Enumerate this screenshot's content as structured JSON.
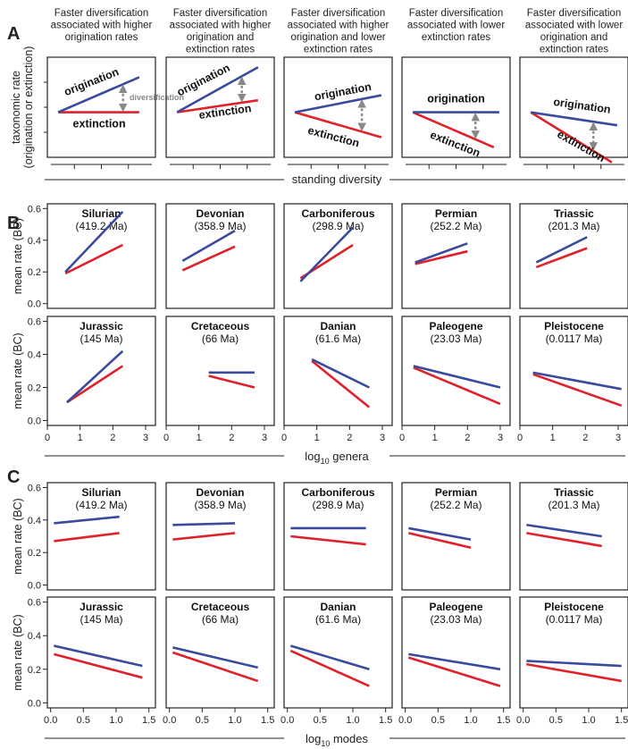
{
  "colors": {
    "origination": "#3a4a9c",
    "extinction": "#e0212b",
    "arrow": "#888888",
    "axis": "#222222"
  },
  "panel_letters": [
    "A",
    "B",
    "C"
  ],
  "chart_data": [
    {
      "id": "A",
      "type": "line",
      "ylabel": [
        "taxonomic rate",
        "(origination or extinction)"
      ],
      "xlabel": "standing diversity",
      "panels": [
        {
          "header": [
            "Faster diversification",
            "associated with higher",
            "origination rates"
          ],
          "origination": [
            [
              0.1,
              0.45
            ],
            [
              0.85,
              0.8
            ]
          ],
          "extinction": [
            [
              0.1,
              0.45
            ],
            [
              0.85,
              0.45
            ]
          ],
          "labels": {
            "origination": "origination",
            "extinction": "extinction",
            "diversification": "diversification"
          }
        },
        {
          "header": [
            "Faster diversification",
            "associated with higher",
            "origination and",
            "extinction rates"
          ],
          "origination": [
            [
              0.1,
              0.45
            ],
            [
              0.85,
              0.9
            ]
          ],
          "extinction": [
            [
              0.1,
              0.45
            ],
            [
              0.85,
              0.57
            ]
          ],
          "labels": {
            "origination": "origination",
            "extinction": "extinction"
          }
        },
        {
          "header": [
            "Faster diversification",
            "associated with higher",
            "origination and lower",
            "extinction rates"
          ],
          "origination": [
            [
              0.1,
              0.45
            ],
            [
              0.9,
              0.62
            ]
          ],
          "extinction": [
            [
              0.1,
              0.45
            ],
            [
              0.9,
              0.2
            ]
          ],
          "labels": {
            "origination": "origination",
            "extinction": "extinction"
          }
        },
        {
          "header": [
            "Faster diversification",
            "associated with lower",
            "extinction rates"
          ],
          "origination": [
            [
              0.1,
              0.45
            ],
            [
              0.9,
              0.45
            ]
          ],
          "extinction": [
            [
              0.1,
              0.45
            ],
            [
              0.85,
              0.1
            ]
          ],
          "labels": {
            "origination": "origination",
            "extinction": "extinction"
          }
        },
        {
          "header": [
            "Faster diversification",
            "associated with lower",
            "origination and",
            "extinction rates"
          ],
          "origination": [
            [
              0.1,
              0.45
            ],
            [
              0.9,
              0.32
            ]
          ],
          "extinction": [
            [
              0.1,
              0.45
            ],
            [
              0.85,
              -0.05
            ]
          ],
          "labels": {
            "origination": "origination",
            "extinction": "extinction"
          }
        }
      ]
    },
    {
      "id": "B",
      "type": "line",
      "xlabel_main": "log",
      "xlabel_sub": "10",
      "xlabel_tail": " genera",
      "ylabel": "mean rate (BC)",
      "xlim": [
        0,
        3.3
      ],
      "ylim": [
        -0.03,
        0.63
      ],
      "xticks": [
        "0",
        "1",
        "2",
        "3"
      ],
      "yticks": [
        "0.0",
        "0.2",
        "0.4",
        "0.6"
      ],
      "panels": [
        {
          "name": "Silurian",
          "age": "(419.2 Ma)",
          "origination": [
            [
              0.55,
              0.2
            ],
            [
              2.3,
              0.58
            ]
          ],
          "extinction": [
            [
              0.55,
              0.19
            ],
            [
              2.3,
              0.37
            ]
          ]
        },
        {
          "name": "Devonian",
          "age": "(358.9 Ma)",
          "origination": [
            [
              0.5,
              0.27
            ],
            [
              2.1,
              0.46
            ]
          ],
          "extinction": [
            [
              0.5,
              0.21
            ],
            [
              2.1,
              0.36
            ]
          ]
        },
        {
          "name": "Carboniferous",
          "age": "(298.9 Ma)",
          "origination": [
            [
              0.5,
              0.14
            ],
            [
              2.1,
              0.48
            ]
          ],
          "extinction": [
            [
              0.5,
              0.16
            ],
            [
              2.1,
              0.37
            ]
          ]
        },
        {
          "name": "Permian",
          "age": "(252.2 Ma)",
          "origination": [
            [
              0.4,
              0.26
            ],
            [
              2.0,
              0.38
            ]
          ],
          "extinction": [
            [
              0.4,
              0.25
            ],
            [
              2.0,
              0.33
            ]
          ]
        },
        {
          "name": "Triassic",
          "age": "(201.3 Ma)",
          "origination": [
            [
              0.5,
              0.26
            ],
            [
              2.05,
              0.42
            ]
          ],
          "extinction": [
            [
              0.5,
              0.23
            ],
            [
              2.05,
              0.35
            ]
          ]
        },
        {
          "name": "Jurassic",
          "age": "(145 Ma)",
          "origination": [
            [
              0.6,
              0.11
            ],
            [
              2.3,
              0.42
            ]
          ],
          "extinction": [
            [
              0.6,
              0.11
            ],
            [
              2.3,
              0.33
            ]
          ]
        },
        {
          "name": "Cretaceous",
          "age": "(66 Ma)",
          "origination": [
            [
              1.3,
              0.29
            ],
            [
              2.7,
              0.29
            ]
          ],
          "extinction": [
            [
              1.3,
              0.27
            ],
            [
              2.7,
              0.2
            ]
          ]
        },
        {
          "name": "Danian",
          "age": "(61.6 Ma)",
          "origination": [
            [
              0.85,
              0.37
            ],
            [
              2.6,
              0.2
            ]
          ],
          "extinction": [
            [
              0.85,
              0.36
            ],
            [
              2.6,
              0.08
            ]
          ]
        },
        {
          "name": "Paleogene",
          "age": "(23.03 Ma)",
          "origination": [
            [
              0.35,
              0.33
            ],
            [
              3.0,
              0.2
            ]
          ],
          "extinction": [
            [
              0.35,
              0.32
            ],
            [
              3.0,
              0.1
            ]
          ]
        },
        {
          "name": "Pleistocene",
          "age": "(0.0117 Ma)",
          "origination": [
            [
              0.4,
              0.29
            ],
            [
              3.1,
              0.19
            ]
          ],
          "extinction": [
            [
              0.4,
              0.28
            ],
            [
              3.1,
              0.09
            ]
          ]
        }
      ]
    },
    {
      "id": "C",
      "type": "line",
      "xlabel_main": "log",
      "xlabel_sub": "10",
      "xlabel_tail": " modes",
      "ylabel": "mean rate (BC)",
      "xlim": [
        -0.05,
        1.6
      ],
      "ylim": [
        -0.03,
        0.63
      ],
      "xticks": [
        "0.0",
        "0.5",
        "1.0",
        "1.5"
      ],
      "yticks": [
        "0.0",
        "0.2",
        "0.4",
        "0.6"
      ],
      "panels": [
        {
          "name": "Silurian",
          "age": "(419.2 Ma)",
          "origination": [
            [
              0.05,
              0.38
            ],
            [
              1.05,
              0.42
            ]
          ],
          "extinction": [
            [
              0.05,
              0.27
            ],
            [
              1.05,
              0.32
            ]
          ]
        },
        {
          "name": "Devonian",
          "age": "(358.9 Ma)",
          "origination": [
            [
              0.05,
              0.37
            ],
            [
              1.0,
              0.38
            ]
          ],
          "extinction": [
            [
              0.05,
              0.28
            ],
            [
              1.0,
              0.32
            ]
          ]
        },
        {
          "name": "Carboniferous",
          "age": "(298.9 Ma)",
          "origination": [
            [
              0.05,
              0.35
            ],
            [
              1.2,
              0.35
            ]
          ],
          "extinction": [
            [
              0.05,
              0.3
            ],
            [
              1.2,
              0.25
            ]
          ]
        },
        {
          "name": "Permian",
          "age": "(252.2 Ma)",
          "origination": [
            [
              0.05,
              0.35
            ],
            [
              1.0,
              0.28
            ]
          ],
          "extinction": [
            [
              0.05,
              0.32
            ],
            [
              1.0,
              0.23
            ]
          ]
        },
        {
          "name": "Triassic",
          "age": "(201.3 Ma)",
          "origination": [
            [
              0.05,
              0.37
            ],
            [
              1.2,
              0.3
            ]
          ],
          "extinction": [
            [
              0.05,
              0.32
            ],
            [
              1.2,
              0.24
            ]
          ]
        },
        {
          "name": "Jurassic",
          "age": "(145 Ma)",
          "origination": [
            [
              0.05,
              0.34
            ],
            [
              1.4,
              0.22
            ]
          ],
          "extinction": [
            [
              0.05,
              0.29
            ],
            [
              1.4,
              0.15
            ]
          ]
        },
        {
          "name": "Cretaceous",
          "age": "(66 Ma)",
          "origination": [
            [
              0.05,
              0.33
            ],
            [
              1.35,
              0.21
            ]
          ],
          "extinction": [
            [
              0.05,
              0.3
            ],
            [
              1.35,
              0.13
            ]
          ]
        },
        {
          "name": "Danian",
          "age": "(61.6 Ma)",
          "origination": [
            [
              0.05,
              0.34
            ],
            [
              1.25,
              0.2
            ]
          ],
          "extinction": [
            [
              0.05,
              0.31
            ],
            [
              1.25,
              0.1
            ]
          ]
        },
        {
          "name": "Paleogene",
          "age": "(23.03 Ma)",
          "origination": [
            [
              0.05,
              0.29
            ],
            [
              1.45,
              0.2
            ]
          ],
          "extinction": [
            [
              0.05,
              0.27
            ],
            [
              1.45,
              0.1
            ]
          ]
        },
        {
          "name": "Pleistocene",
          "age": "(0.0117 Ma)",
          "origination": [
            [
              0.05,
              0.25
            ],
            [
              1.5,
              0.22
            ]
          ],
          "extinction": [
            [
              0.05,
              0.23
            ],
            [
              1.5,
              0.13
            ]
          ]
        }
      ]
    }
  ]
}
